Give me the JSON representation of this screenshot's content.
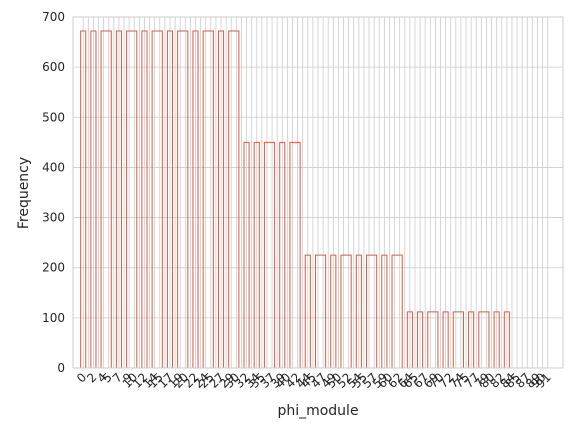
{
  "chart_data": {
    "type": "bar",
    "style": "step-outline",
    "xlabel": "phi_module",
    "ylabel": "Frequency",
    "ylim": [
      0,
      700
    ],
    "yticks": [
      0,
      100,
      200,
      300,
      400,
      500,
      600,
      700
    ],
    "grid": true,
    "bar_color": "#dd5a3e",
    "grid_color": "#cccccc",
    "axes_color": "#cccccc",
    "x_range": [
      -2,
      94
    ],
    "categories": [
      0,
      1,
      2,
      3,
      4,
      5,
      6,
      7,
      8,
      9,
      10,
      11,
      12,
      13,
      14,
      15,
      16,
      17,
      18,
      19,
      20,
      21,
      22,
      23,
      24,
      25,
      26,
      27,
      28,
      29,
      30,
      31,
      32,
      33,
      34,
      35,
      36,
      37,
      38,
      39,
      40,
      41,
      42,
      43,
      44,
      45,
      46,
      47,
      48,
      49,
      50,
      51,
      52,
      53,
      54,
      55,
      56,
      57,
      58,
      59,
      60,
      61,
      62,
      63,
      64,
      65,
      66,
      67,
      68,
      69,
      70,
      71,
      72,
      73,
      74,
      75,
      76,
      77,
      78,
      79,
      80,
      81,
      82,
      83,
      84,
      85,
      86,
      87,
      88,
      89,
      90,
      91
    ],
    "values": [
      672,
      0,
      672,
      0,
      672,
      672,
      0,
      672,
      0,
      672,
      672,
      0,
      672,
      0,
      672,
      672,
      0,
      672,
      0,
      672,
      672,
      0,
      672,
      0,
      672,
      672,
      0,
      672,
      0,
      672,
      672,
      0,
      450,
      0,
      450,
      0,
      450,
      450,
      0,
      450,
      0,
      450,
      450,
      0,
      225,
      0,
      225,
      225,
      0,
      225,
      0,
      225,
      225,
      0,
      225,
      0,
      225,
      225,
      0,
      225,
      0,
      225,
      225,
      0,
      112,
      0,
      112,
      0,
      112,
      112,
      0,
      112,
      0,
      112,
      112,
      0,
      112,
      0,
      112,
      112,
      0,
      112,
      0,
      112,
      0,
      0,
      0,
      0,
      0,
      0,
      0,
      0
    ],
    "xtick_labels": [
      "0",
      "2",
      "4",
      "5",
      "7",
      "9",
      "10",
      "12",
      "14",
      "15",
      "17",
      "19",
      "20",
      "22",
      "24",
      "25",
      "27",
      "29",
      "30",
      "32",
      "34",
      "35",
      "37",
      "39",
      "40",
      "42",
      "44",
      "45",
      "47",
      "49",
      "50",
      "52",
      "54",
      "55",
      "57",
      "59",
      "60",
      "62",
      "64",
      "65",
      "67",
      "69",
      "70",
      "72",
      "74",
      "75",
      "77",
      "79",
      "80",
      "82",
      "84",
      "85",
      "87",
      "89",
      "90",
      "91"
    ]
  }
}
